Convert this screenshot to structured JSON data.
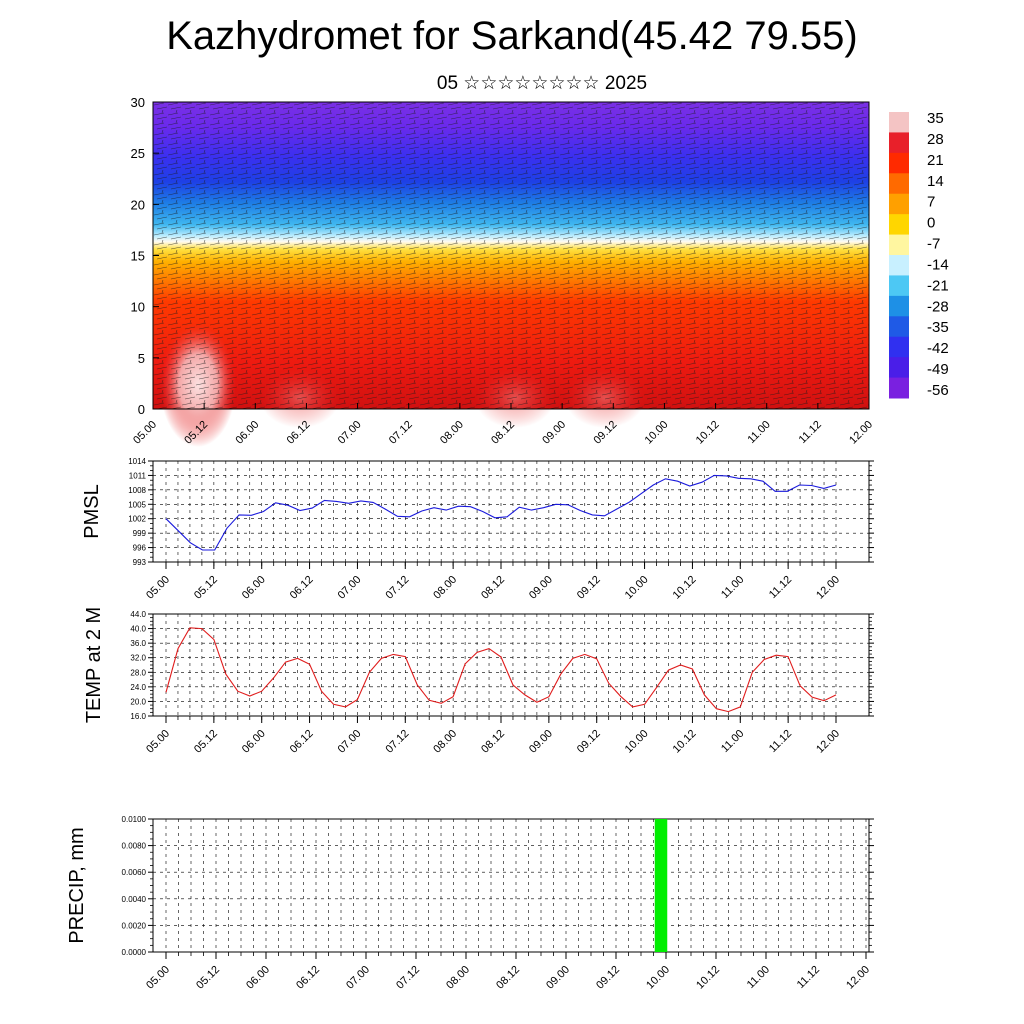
{
  "header": {
    "title": "Kazhydromet for Sarkand(45.42 79.55)",
    "subtitle": "05 ☆☆☆☆☆☆☆☆ 2025"
  },
  "chart_data": [
    {
      "type": "heatmap",
      "title": "",
      "ylabel": "",
      "ylim": [
        0,
        30
      ],
      "yticks": [
        "0",
        "5",
        "10",
        "15",
        "20",
        "25",
        "30"
      ],
      "xticks": [
        "05.00",
        "05.12",
        "06.00",
        "06.12",
        "07.00",
        "07.12",
        "08.00",
        "08.12",
        "09.00",
        "09.12",
        "10.00",
        "10.12",
        "11.00",
        "11.12",
        "12.00"
      ],
      "colorbar": {
        "labels": [
          "35",
          "28",
          "21",
          "14",
          "7",
          "0",
          "-7",
          "-14",
          "-21",
          "-28",
          "-35",
          "-42",
          "-49",
          "-56"
        ],
        "colors": [
          "#f4c4c4",
          "#e8202a",
          "#ff2a00",
          "#ff6a00",
          "#ffa000",
          "#ffd600",
          "#fff6a0",
          "#c8f0ff",
          "#4dc8f4",
          "#1e90e6",
          "#1f5ae6",
          "#3030f0",
          "#4a1ee8",
          "#7a20e0"
        ]
      },
      "overlay": "wind barbs"
    },
    {
      "type": "line",
      "ylabel": "PMSL",
      "ylim": [
        993,
        1014
      ],
      "yticks": [
        "993",
        "996",
        "999",
        "1002",
        "1005",
        "1008",
        "1011",
        "1014"
      ],
      "xticks": [
        "05.00",
        "05.12",
        "06.00",
        "06.12",
        "07.00",
        "07.12",
        "08.00",
        "08.12",
        "09.00",
        "09.12",
        "10.00",
        "10.12",
        "11.00",
        "11.12",
        "12.00"
      ],
      "line_color": "#1a1adc",
      "series": [
        {
          "values": [
            1002,
            999.5,
            997,
            995.5,
            995.5,
            1000,
            1002.8,
            1002.7,
            1003.5,
            1005.3,
            1004.8,
            1003.7,
            1004.2,
            1005.8,
            1005.6,
            1005.2,
            1005.7,
            1005.4,
            1004,
            1002.5,
            1002.4,
            1003.6,
            1004.3,
            1003.8,
            1004.6,
            1004.5,
            1003.5,
            1002.2,
            1002.4,
            1004.4,
            1003.8,
            1004.3,
            1005,
            1004.9,
            1003.7,
            1002.8,
            1002.6,
            1004,
            1005.4,
            1007.2,
            1009,
            1010.3,
            1009.8,
            1008.8,
            1009.6,
            1011,
            1010.9,
            1010.4,
            1010.3,
            1009.8,
            1007.7,
            1007.7,
            1009,
            1008.9,
            1008.3,
            1009
          ]
        }
      ]
    },
    {
      "type": "line",
      "ylabel": "TEMP at 2 M",
      "ylim": [
        16,
        44
      ],
      "yticks": [
        "16.0",
        "20.0",
        "24.0",
        "28.0",
        "32.0",
        "36.0",
        "40.0",
        "44.0"
      ],
      "xticks": [
        "05.00",
        "05.12",
        "06.00",
        "06.12",
        "07.00",
        "07.12",
        "08.00",
        "08.12",
        "09.00",
        "09.12",
        "10.00",
        "10.12",
        "11.00",
        "11.12",
        "12.00"
      ],
      "line_color": "#e01c1c",
      "series": [
        {
          "values": [
            22.5,
            34.5,
            40.2,
            40,
            37,
            27.5,
            22.8,
            21.5,
            22.8,
            26.5,
            30.8,
            31.8,
            30.2,
            22.8,
            19.2,
            18.5,
            20.5,
            28,
            31.8,
            32.9,
            32.3,
            24.5,
            20.3,
            19.5,
            21.3,
            30.3,
            33.5,
            34.5,
            32.2,
            24.5,
            21.8,
            19.8,
            21.3,
            27.5,
            31.8,
            32.9,
            31.7,
            25,
            21.4,
            18.5,
            19.2,
            23.8,
            28.6,
            30,
            28.9,
            21.8,
            18,
            17.2,
            18.5,
            28,
            31.5,
            32.7,
            32.3,
            24.3,
            21.2,
            20.2,
            21.8
          ]
        }
      ]
    },
    {
      "type": "bar",
      "ylabel": "PRECIP, mm",
      "ylim": [
        0,
        0.01
      ],
      "yticks": [
        "0.0000",
        "0.0020",
        "0.0040",
        "0.0060",
        "0.0080",
        "0.0100"
      ],
      "xticks": [
        "05.00",
        "05.12",
        "06.00",
        "06.12",
        "07.00",
        "07.12",
        "08.00",
        "08.12",
        "09.00",
        "09.12",
        "10.00",
        "10.12",
        "11.00",
        "11.12",
        "12.00"
      ],
      "bar_color": "#00ee00",
      "bars": [
        {
          "x_step": 9.9,
          "width_steps": 0.25,
          "value": 0.01
        }
      ]
    }
  ]
}
